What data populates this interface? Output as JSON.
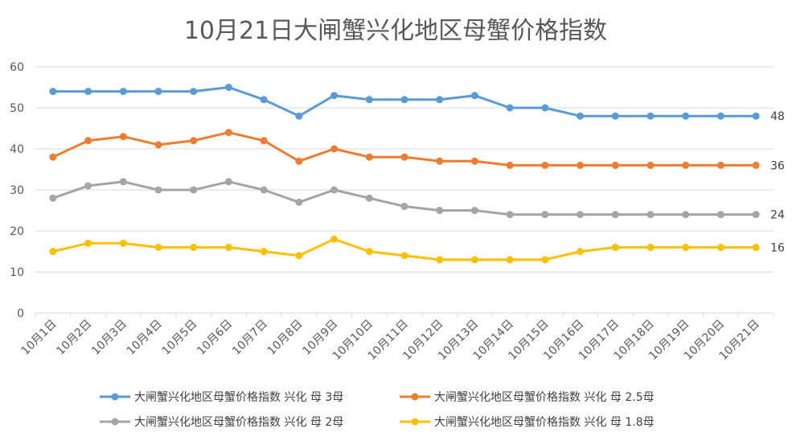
{
  "chart_data": {
    "type": "line",
    "title": "10月21日大闸蟹兴化地区母蟹价格指数",
    "xlabel": "",
    "ylabel": "",
    "ylim": [
      0,
      60
    ],
    "yticks": [
      0,
      10,
      20,
      30,
      40,
      50,
      60
    ],
    "grid": true,
    "legend_position": "bottom",
    "categories": [
      "10月1日",
      "10月2日",
      "10月3日",
      "10月4日",
      "10月5日",
      "10月6日",
      "10月7日",
      "10月8日",
      "10月9日",
      "10月10日",
      "10月11日",
      "10月12日",
      "10月13日",
      "10月14日",
      "10月15日",
      "10月16日",
      "10月17日",
      "10月18日",
      "10月19日",
      "10月20日",
      "10月21日"
    ],
    "series": [
      {
        "name": "大闸蟹兴化地区母蟹价格指数 兴化 母 3母",
        "color": "#5B9BD5",
        "end_label": "48",
        "values": [
          54,
          54,
          54,
          54,
          54,
          55,
          52,
          48,
          53,
          52,
          52,
          52,
          53,
          50,
          50,
          48,
          48,
          48,
          48,
          48,
          48
        ]
      },
      {
        "name": "大闸蟹兴化地区母蟹价格指数 兴化 母 2.5母",
        "color": "#ED7D31",
        "end_label": "36",
        "values": [
          38,
          42,
          43,
          41,
          42,
          44,
          42,
          37,
          40,
          38,
          38,
          37,
          37,
          36,
          36,
          36,
          36,
          36,
          36,
          36,
          36
        ]
      },
      {
        "name": "大闸蟹兴化地区母蟹价格指数 兴化 母 2母",
        "color": "#A5A5A5",
        "end_label": "24",
        "values": [
          28,
          31,
          32,
          30,
          30,
          32,
          30,
          27,
          30,
          28,
          26,
          25,
          25,
          24,
          24,
          24,
          24,
          24,
          24,
          24,
          24
        ]
      },
      {
        "name": "大闸蟹兴化地区母蟹价格指数 兴化 母 1.8母",
        "color": "#FFC000",
        "end_label": "16",
        "values": [
          15,
          17,
          17,
          16,
          16,
          16,
          15,
          14,
          18,
          15,
          14,
          13,
          13,
          13,
          13,
          15,
          16,
          16,
          16,
          16,
          16
        ]
      }
    ]
  }
}
